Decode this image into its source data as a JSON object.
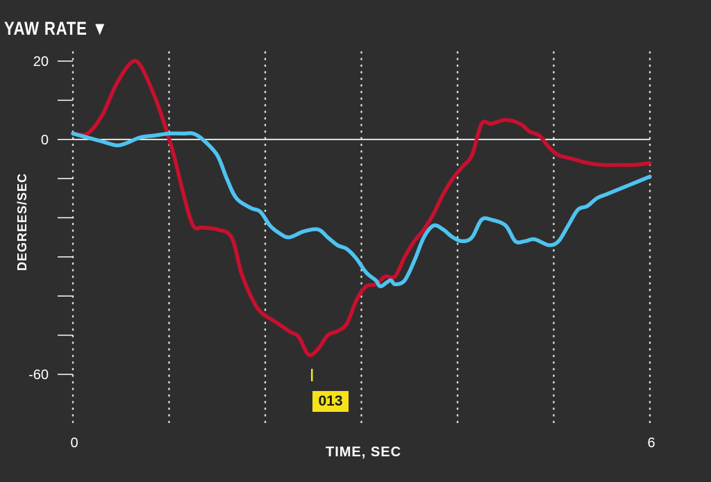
{
  "chart_data": {
    "type": "line",
    "title": "YAW RATE ▼",
    "xlabel": "TIME, SEC",
    "ylabel": "DEGREES/SEC",
    "xlim": [
      0,
      6
    ],
    "ylim": [
      -60,
      20
    ],
    "x_tick_labels": [
      {
        "x": 0,
        "label": "0"
      },
      {
        "x": 6,
        "label": "6"
      }
    ],
    "y_ticks": [
      20,
      10,
      0,
      -10,
      -20,
      -30,
      -40,
      -50,
      -60
    ],
    "y_tick_labels": [
      {
        "y": 20,
        "label": "20"
      },
      {
        "y": 0,
        "label": "0"
      },
      {
        "y": -60,
        "label": "-60"
      }
    ],
    "vertical_gridlines": [
      0,
      1,
      2,
      3,
      4,
      5,
      6
    ],
    "grid": "vertical dotted",
    "annotation": {
      "x": 2.5,
      "label": "013"
    },
    "series": [
      {
        "color": "#c8102e",
        "points": [
          [
            0,
            1.5
          ],
          [
            0.15,
            1.5
          ],
          [
            0.3,
            6
          ],
          [
            0.45,
            14
          ],
          [
            0.6,
            19.5
          ],
          [
            0.7,
            19
          ],
          [
            0.85,
            11
          ],
          [
            0.95,
            4
          ],
          [
            1.05,
            -4
          ],
          [
            1.15,
            -14
          ],
          [
            1.25,
            -22
          ],
          [
            1.35,
            -22.5
          ],
          [
            1.5,
            -23
          ],
          [
            1.65,
            -25
          ],
          [
            1.75,
            -34
          ],
          [
            1.85,
            -40
          ],
          [
            1.95,
            -44
          ],
          [
            2.1,
            -46.5
          ],
          [
            2.25,
            -49
          ],
          [
            2.35,
            -50.5
          ],
          [
            2.45,
            -55
          ],
          [
            2.55,
            -53.5
          ],
          [
            2.65,
            -50
          ],
          [
            2.75,
            -49
          ],
          [
            2.85,
            -47
          ],
          [
            2.95,
            -41
          ],
          [
            3.05,
            -37.5
          ],
          [
            3.15,
            -37
          ],
          [
            3.25,
            -35
          ],
          [
            3.35,
            -35
          ],
          [
            3.45,
            -30
          ],
          [
            3.55,
            -26
          ],
          [
            3.65,
            -23
          ],
          [
            3.75,
            -19
          ],
          [
            3.85,
            -14
          ],
          [
            3.95,
            -10
          ],
          [
            4.05,
            -7
          ],
          [
            4.15,
            -4
          ],
          [
            4.25,
            4
          ],
          [
            4.35,
            4
          ],
          [
            4.5,
            5
          ],
          [
            4.65,
            4
          ],
          [
            4.75,
            2
          ],
          [
            4.85,
            1
          ],
          [
            4.95,
            -2
          ],
          [
            5.05,
            -4
          ],
          [
            5.2,
            -5
          ],
          [
            5.35,
            -6
          ],
          [
            5.5,
            -6.5
          ],
          [
            5.7,
            -6.5
          ],
          [
            5.85,
            -6.5
          ],
          [
            6,
            -6
          ]
        ]
      },
      {
        "color": "#4fc3f0",
        "points": [
          [
            0,
            1.5
          ],
          [
            0.15,
            0.5
          ],
          [
            0.3,
            -0.5
          ],
          [
            0.45,
            -1.5
          ],
          [
            0.55,
            -1
          ],
          [
            0.7,
            0.5
          ],
          [
            0.85,
            1
          ],
          [
            1.0,
            1.5
          ],
          [
            1.15,
            1.5
          ],
          [
            1.25,
            1.5
          ],
          [
            1.35,
            0
          ],
          [
            1.5,
            -4
          ],
          [
            1.6,
            -10
          ],
          [
            1.7,
            -15
          ],
          [
            1.85,
            -17.5
          ],
          [
            1.95,
            -18.5
          ],
          [
            2.05,
            -22
          ],
          [
            2.15,
            -24
          ],
          [
            2.25,
            -25
          ],
          [
            2.4,
            -23.5
          ],
          [
            2.55,
            -23
          ],
          [
            2.65,
            -25
          ],
          [
            2.75,
            -27
          ],
          [
            2.85,
            -28
          ],
          [
            2.95,
            -30.5
          ],
          [
            3.05,
            -34
          ],
          [
            3.15,
            -36
          ],
          [
            3.2,
            -37.5
          ],
          [
            3.3,
            -36
          ],
          [
            3.35,
            -37
          ],
          [
            3.45,
            -36
          ],
          [
            3.55,
            -31
          ],
          [
            3.65,
            -25
          ],
          [
            3.75,
            -22
          ],
          [
            3.85,
            -23
          ],
          [
            3.95,
            -25
          ],
          [
            4.05,
            -26
          ],
          [
            4.15,
            -25
          ],
          [
            4.25,
            -20.5
          ],
          [
            4.35,
            -20.5
          ],
          [
            4.5,
            -22
          ],
          [
            4.6,
            -26
          ],
          [
            4.7,
            -26
          ],
          [
            4.8,
            -25.5
          ],
          [
            4.95,
            -27
          ],
          [
            5.05,
            -26
          ],
          [
            5.15,
            -22
          ],
          [
            5.25,
            -18
          ],
          [
            5.35,
            -17
          ],
          [
            5.45,
            -15
          ],
          [
            5.55,
            -14
          ],
          [
            5.7,
            -12.5
          ],
          [
            5.85,
            -11
          ],
          [
            6,
            -9.5
          ]
        ]
      }
    ]
  }
}
